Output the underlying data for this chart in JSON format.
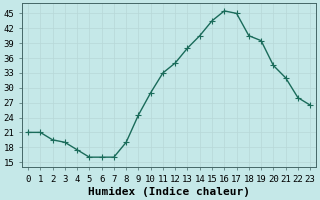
{
  "x": [
    0,
    1,
    2,
    3,
    4,
    5,
    6,
    7,
    8,
    9,
    10,
    11,
    12,
    13,
    14,
    15,
    16,
    17,
    18,
    19,
    20,
    21,
    22,
    23
  ],
  "y": [
    21,
    21,
    19.5,
    19,
    17.5,
    16,
    16,
    16,
    19,
    24.5,
    29,
    33,
    35,
    38,
    40.5,
    43.5,
    45.5,
    45,
    40.5,
    39.5,
    34.5,
    32,
    28,
    26.5
  ],
  "line_color": "#1a6b5a",
  "marker": "+",
  "marker_size": 4,
  "bg_color": "#c5e8e8",
  "grid_color": "#b8d8d8",
  "xlabel": "Humidex (Indice chaleur)",
  "xlabel_fontsize": 8,
  "xlim": [
    -0.5,
    23.5
  ],
  "ylim": [
    14,
    47
  ],
  "yticks": [
    15,
    18,
    21,
    24,
    27,
    30,
    33,
    36,
    39,
    42,
    45
  ],
  "xtick_labels": [
    "0",
    "1",
    "2",
    "3",
    "4",
    "5",
    "6",
    "7",
    "8",
    "9",
    "10",
    "11",
    "12",
    "13",
    "14",
    "15",
    "16",
    "17",
    "18",
    "19",
    "20",
    "21",
    "22",
    "23"
  ],
  "tick_fontsize": 6.5,
  "line_width": 1.0,
  "marker_edge_width": 0.8,
  "spine_color": "#446666",
  "grid_lw": 0.5
}
